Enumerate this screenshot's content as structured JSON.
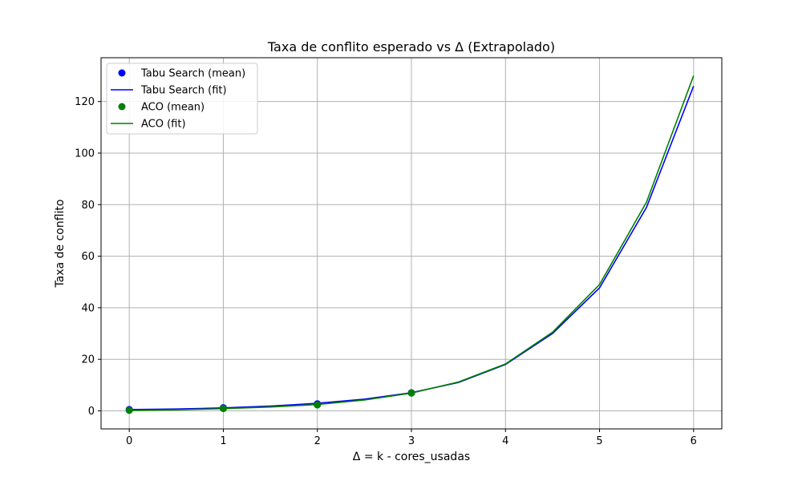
{
  "chart_data": {
    "type": "line",
    "title": "Taxa de conflito esperado vs Δ (Extrapolado)",
    "xlabel": "Δ = k - cores_usadas",
    "ylabel": "Taxa de conflito",
    "xlim": [
      -0.3,
      6.3
    ],
    "ylim": [
      -7,
      137
    ],
    "xticks": [
      0,
      1,
      2,
      3,
      4,
      5,
      6
    ],
    "yticks": [
      0,
      20,
      40,
      60,
      80,
      100,
      120
    ],
    "grid": true,
    "legend_position": "upper-left",
    "series": [
      {
        "name": "Tabu Search (mean)",
        "kind": "points",
        "color": "#0000ff",
        "x": [
          0,
          1,
          2,
          3
        ],
        "y": [
          0.5,
          1.2,
          2.7,
          7.0
        ]
      },
      {
        "name": "Tabu Search (fit)",
        "kind": "line",
        "color": "#0000ff",
        "x": [
          0,
          0.5,
          1,
          1.5,
          2,
          2.5,
          3,
          3.5,
          4,
          4.5,
          5,
          5.5,
          6
        ],
        "y": [
          0.47,
          0.71,
          1.15,
          1.85,
          2.92,
          4.53,
          7.05,
          11.0,
          18.0,
          30.0,
          47.7,
          79.0,
          126.0
        ]
      },
      {
        "name": "ACO (mean)",
        "kind": "points",
        "color": "#008000",
        "x": [
          0,
          1,
          2,
          3
        ],
        "y": [
          0.2,
          0.9,
          2.3,
          6.9
        ]
      },
      {
        "name": "ACO (fit)",
        "kind": "line",
        "color": "#008000",
        "x": [
          0,
          0.5,
          1,
          1.5,
          2,
          2.5,
          3,
          3.5,
          4,
          4.5,
          5,
          5.5,
          6
        ],
        "y": [
          0.15,
          0.4,
          0.85,
          1.5,
          2.45,
          4.2,
          6.9,
          11.2,
          18.2,
          30.5,
          49.0,
          81.0,
          130.0
        ]
      }
    ]
  }
}
